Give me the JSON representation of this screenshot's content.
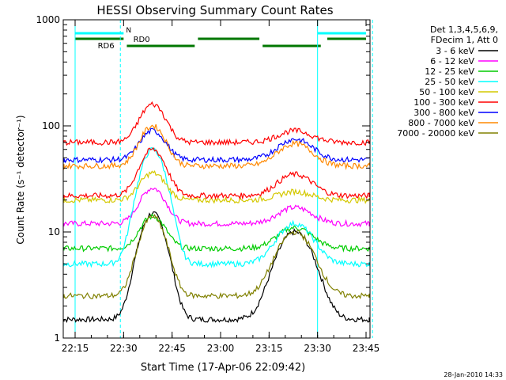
{
  "chart_data": {
    "type": "line",
    "title": "HESSI Observing Summary Count Rates",
    "xlabel": "Start Time (17-Apr-06 22:09:42)",
    "ylabel": "Count Rate (s⁻¹ detector⁻¹)",
    "footer": "28-Jan-2010 14:33",
    "y_scale": "log",
    "ylim": [
      1,
      1000
    ],
    "xlim_minutes": [
      22.15,
      23.85
    ],
    "x_ticks": [
      "22:15",
      "22:30",
      "22:45",
      "23:00",
      "23:15",
      "23:30",
      "23:45"
    ],
    "y_ticks": [
      "1",
      "10",
      "100",
      "1000"
    ],
    "legend": {
      "placement": "right",
      "header": [
        "Det 1,3,4,5,6,9,",
        "FDecim 1, Att 0"
      ]
    },
    "series": [
      {
        "name": "3 - 6 keV",
        "color": "#000000",
        "base": 1.5,
        "peak1": 15,
        "peak2": 10
      },
      {
        "name": "6 - 12 keV",
        "color": "#ff00ff",
        "base": 12,
        "peak1": 26,
        "peak2": 17
      },
      {
        "name": "12 - 25 keV",
        "color": "#00cc00",
        "base": 7,
        "peak1": 14,
        "peak2": 11
      },
      {
        "name": "25 - 50 keV",
        "color": "#00ffff",
        "base": 5,
        "peak1": 60,
        "peak2": 12
      },
      {
        "name": "50 - 100 keV",
        "color": "#d4c800",
        "base": 20,
        "peak1": 36,
        "peak2": 24
      },
      {
        "name": "100 - 300 keV",
        "color": "#ff0000",
        "base": 22,
        "peak1": 60,
        "peak2": 35
      },
      {
        "name": "300 - 800 keV",
        "color": "#0000ff",
        "base": 48,
        "peak1": 90,
        "peak2": 75
      },
      {
        "name": "800 - 7000 keV",
        "color": "#ff8800",
        "base": 42,
        "peak1": 100,
        "peak2": 68
      },
      {
        "name": "7000 - 20000 keV",
        "color": "#808000",
        "base": 2.5,
        "peak1": 14,
        "peak2": 10
      }
    ],
    "top_series": {
      "name": "100 - 300 keV",
      "color": "#ff0000",
      "base": 70,
      "peak1": 160,
      "peak2": 90
    },
    "flags": [
      {
        "label": "N",
        "color": "#00ffff",
        "level": 1.0,
        "intervals": [
          [
            "22:15",
            "22:30"
          ],
          [
            "23:30",
            "23:45"
          ]
        ]
      },
      {
        "label": "RD0",
        "color": "#007700",
        "level": 2.0,
        "intervals": [
          [
            "22:15",
            "22:30"
          ],
          [
            "22:53",
            "23:12"
          ],
          [
            "23:33",
            "23:45"
          ]
        ]
      },
      {
        "label": "RD6",
        "color": "#007700",
        "level": 3.0,
        "intervals": [
          [
            "22:31",
            "22:52"
          ],
          [
            "23:13",
            "23:31"
          ]
        ]
      }
    ],
    "vlines": [
      {
        "time": "22:15",
        "color": "#00ffff",
        "style": "solid"
      },
      {
        "time": "22:29",
        "color": "#00ffff",
        "style": "dashed"
      },
      {
        "time": "23:30",
        "color": "#00ffff",
        "style": "solid"
      },
      {
        "time": "23:47",
        "color": "#00ffff",
        "style": "dashed"
      }
    ]
  }
}
